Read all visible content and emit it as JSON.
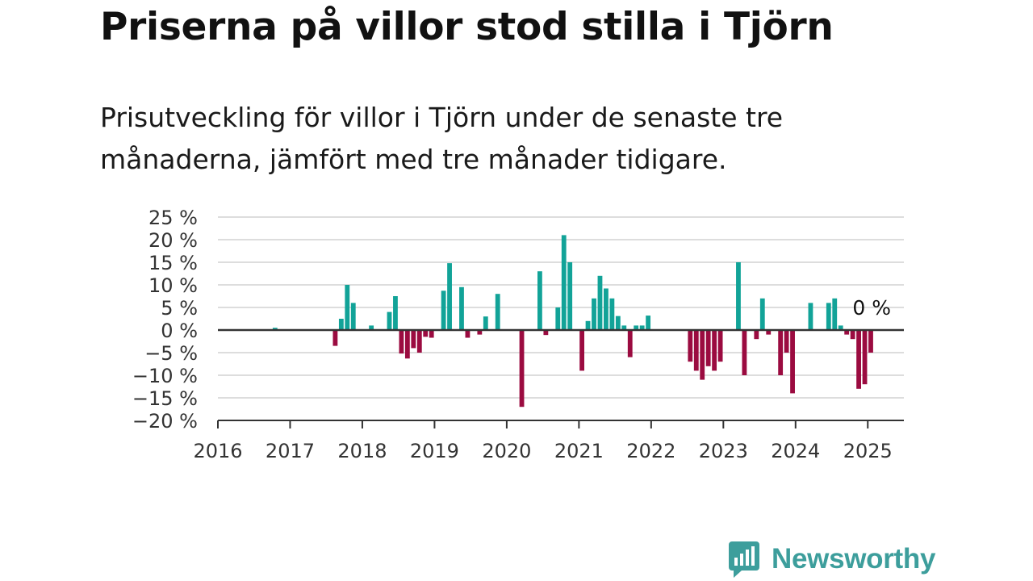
{
  "title": "Priserna på villor stod stilla i Tjörn",
  "subtitle": "Prisutveckling för villor i Tjörn under de senaste tre månaderna, jämfört med tre månader tidigare.",
  "brand": {
    "name": "Newsworthy",
    "icon": "bar-chart-speech-bubble-icon",
    "color": "#3d9e9c"
  },
  "chart_data": {
    "type": "bar",
    "title": "",
    "xlabel": "",
    "ylabel": "",
    "ylim": [
      -20,
      25
    ],
    "y_ticks": [
      25,
      20,
      15,
      10,
      5,
      0,
      -5,
      -10,
      -15,
      -20
    ],
    "y_tick_labels": [
      "25 %",
      "20 %",
      "15 %",
      "10 %",
      "5 %",
      "0 %",
      "−5 %",
      "−10 %",
      "−15 %",
      "−20 %"
    ],
    "x_range": [
      "2016-01",
      "2025-07"
    ],
    "x_ticks": [
      "2016",
      "2017",
      "2018",
      "2019",
      "2020",
      "2021",
      "2022",
      "2023",
      "2024",
      "2025"
    ],
    "grid": true,
    "colors": {
      "positive": "#12a398",
      "negative": "#9b0b40",
      "axis": "#333333",
      "grid": "#dddddd"
    },
    "last_value_label": "0 %",
    "series": [
      {
        "x": [
          "2016-10",
          "2017-08",
          "2017-09",
          "2017-10",
          "2017-11",
          "2018-02",
          "2018-05",
          "2018-06",
          "2018-07",
          "2018-08",
          "2018-09",
          "2018-10",
          "2018-11",
          "2018-12",
          "2019-02",
          "2019-03",
          "2019-05",
          "2019-06",
          "2019-08",
          "2019-09",
          "2019-11",
          "2020-03",
          "2020-06",
          "2020-07",
          "2020-09",
          "2020-10",
          "2020-11",
          "2021-01",
          "2021-02",
          "2021-03",
          "2021-04",
          "2021-05",
          "2021-06",
          "2021-07",
          "2021-08",
          "2021-09",
          "2021-10",
          "2021-11",
          "2021-12",
          "2022-07",
          "2022-08",
          "2022-09",
          "2022-10",
          "2022-11",
          "2022-12",
          "2023-03",
          "2023-04",
          "2023-06",
          "2023-07",
          "2023-08",
          "2023-10",
          "2023-11",
          "2023-12",
          "2024-03",
          "2024-06",
          "2024-07",
          "2024-08",
          "2024-09",
          "2024-10",
          "2024-11",
          "2024-12",
          "2025-01"
        ],
        "values": [
          0.5,
          -3.5,
          2.5,
          10,
          6,
          1,
          4,
          7.5,
          -5.2,
          -6.3,
          -4,
          -5,
          -1.5,
          -1.7,
          8.7,
          14.8,
          9.5,
          -1.7,
          -1,
          3,
          8,
          -17,
          13,
          -1.1,
          5,
          21,
          15,
          -9,
          2,
          7,
          12,
          9.2,
          7,
          3.1,
          1,
          -6,
          1,
          1,
          3.2,
          -7,
          -9,
          -11,
          -8,
          -9,
          -7,
          15,
          -10,
          -2,
          7,
          -1,
          -10,
          -5,
          -14,
          6,
          6,
          7,
          1,
          -1,
          -2,
          -13,
          -12,
          -5
        ]
      }
    ]
  }
}
